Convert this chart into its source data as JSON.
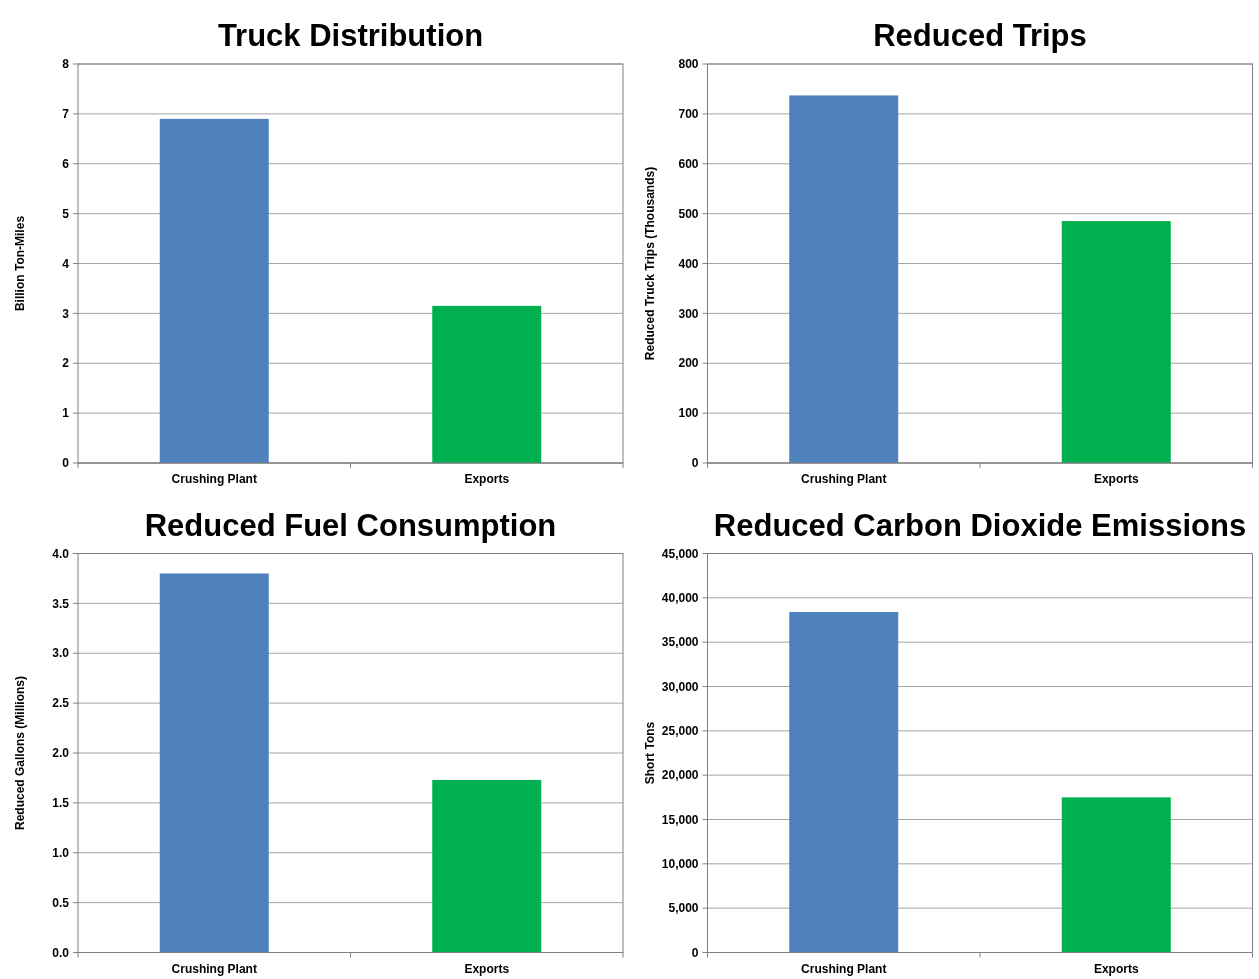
{
  "chart_data": [
    {
      "type": "bar",
      "title": "Truck Distribution",
      "ylabel": "Billion Ton-Miles",
      "categories": [
        "Crushing Plant",
        "Exports"
      ],
      "values": [
        6.9,
        3.15
      ],
      "colors": [
        "#4f81bd",
        "#00b050"
      ],
      "ylim": [
        0,
        8
      ],
      "yticks": [
        0,
        1,
        2,
        3,
        4,
        5,
        6,
        7,
        8
      ],
      "grid": "y"
    },
    {
      "type": "bar",
      "title": "Reduced Trips",
      "ylabel": "Reduced Truck Trips (Thousands)",
      "categories": [
        "Crushing Plant",
        "Exports"
      ],
      "values": [
        737,
        485
      ],
      "colors": [
        "#4f81bd",
        "#00b050"
      ],
      "ylim": [
        0,
        800
      ],
      "yticks": [
        0,
        100,
        200,
        300,
        400,
        500,
        600,
        700,
        800
      ],
      "grid": "y"
    },
    {
      "type": "bar",
      "title": "Reduced Fuel Consumption",
      "ylabel": "Reduced Gallons (Millions)",
      "categories": [
        "Crushing Plant",
        "Exports"
      ],
      "values": [
        3.8,
        1.73
      ],
      "colors": [
        "#4f81bd",
        "#00b050"
      ],
      "ylim": [
        0,
        4
      ],
      "yticks": [
        {
          "value": 0,
          "label": "0.0"
        },
        {
          "value": 0.5,
          "label": "0.5"
        },
        {
          "value": 1,
          "label": "1.0"
        },
        {
          "value": 1.5,
          "label": "1.5"
        },
        {
          "value": 2,
          "label": "2.0"
        },
        {
          "value": 2.5,
          "label": "2.5"
        },
        {
          "value": 3,
          "label": "3.0"
        },
        {
          "value": 3.5,
          "label": "3.5"
        },
        {
          "value": 4,
          "label": "4.0"
        }
      ],
      "grid": "y"
    },
    {
      "type": "bar",
      "title": "Reduced Carbon Dioxide Emissions",
      "ylabel": "Short Tons",
      "categories": [
        "Crushing Plant",
        "Exports"
      ],
      "values": [
        38400,
        17500
      ],
      "colors": [
        "#4f81bd",
        "#00b050"
      ],
      "ylim": [
        0,
        45000
      ],
      "yticks": [
        0,
        {
          "value": 5000,
          "label": "5,000"
        },
        {
          "value": 10000,
          "label": "10,000"
        },
        {
          "value": 15000,
          "label": "15,000"
        },
        {
          "value": 20000,
          "label": "20,000"
        },
        {
          "value": 25000,
          "label": "25,000"
        },
        {
          "value": 30000,
          "label": "30,000"
        },
        {
          "value": 35000,
          "label": "35,000"
        },
        {
          "value": 40000,
          "label": "40,000"
        },
        {
          "value": 45000,
          "label": "45,000"
        }
      ],
      "grid": "y"
    }
  ]
}
